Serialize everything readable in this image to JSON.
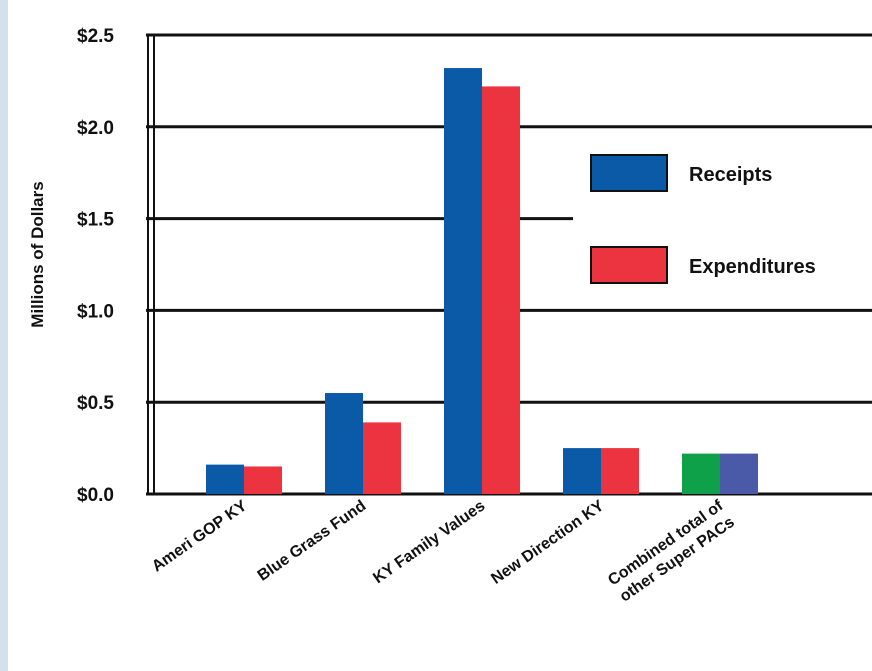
{
  "chart_data": {
    "type": "bar",
    "title": "",
    "xlabel": "",
    "ylabel": "Millions of Dollars",
    "ylim": [
      0,
      2.5
    ],
    "yticks": [
      {
        "value": 0.0,
        "label": "$0.0"
      },
      {
        "value": 0.5,
        "label": "$0.5"
      },
      {
        "value": 1.0,
        "label": "$1.0"
      },
      {
        "value": 1.5,
        "label": "$1.5"
      },
      {
        "value": 2.0,
        "label": "$2.0"
      },
      {
        "value": 2.5,
        "label": "$2.5"
      }
    ],
    "categories": [
      [
        "Ameri GOP KY"
      ],
      [
        "Blue Grass Fund"
      ],
      [
        "KY Family Values"
      ],
      [
        "New Direction KY"
      ],
      [
        "Combined total of",
        "other Super PACs"
      ]
    ],
    "series": [
      {
        "name": "Receipts",
        "color": "#0b5aa8",
        "values": [
          0.16,
          0.55,
          2.32,
          0.25,
          0.22
        ],
        "bar_colors": [
          "#0b5aa8",
          "#0b5aa8",
          "#0b5aa8",
          "#0b5aa8",
          "#0fa04a"
        ]
      },
      {
        "name": "Expenditures",
        "color": "#ec3340",
        "values": [
          0.15,
          0.39,
          2.22,
          0.25,
          0.22
        ],
        "bar_colors": [
          "#ec3340",
          "#ec3340",
          "#ec3340",
          "#ec3340",
          "#4b5aa8"
        ]
      }
    ],
    "legend_position": "right",
    "grid": true
  }
}
